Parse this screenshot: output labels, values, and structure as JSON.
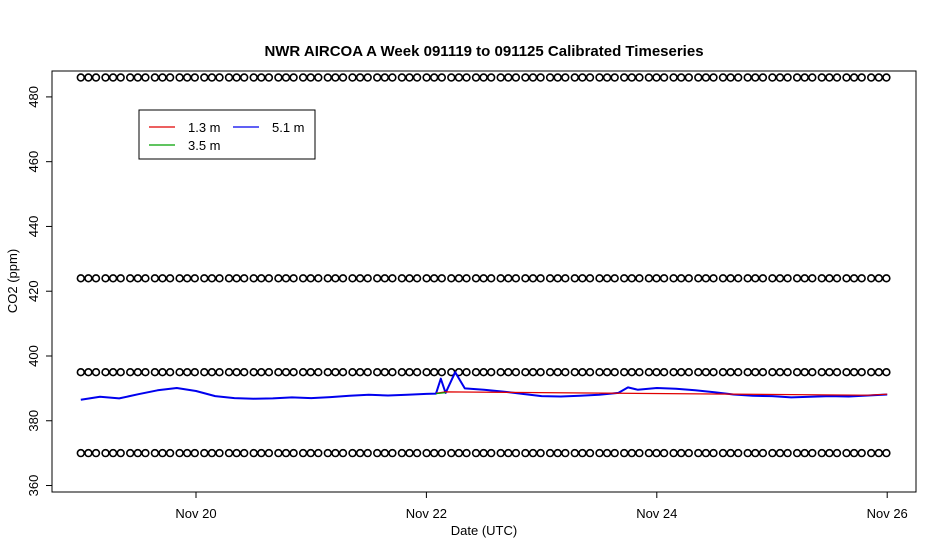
{
  "chart_data": {
    "type": "line",
    "title": "NWR AIRCOA A  Week 091119 to 091125  Calibrated Timeseries",
    "xlabel": "Date (UTC)",
    "ylabel": "CO2 (ppm)",
    "x_range": [
      "2009-11-18T18:00",
      "2009-11-26T06:00"
    ],
    "x_ticks": [
      {
        "x": "2009-11-20T00:00",
        "label": "Nov 20"
      },
      {
        "x": "2009-11-22T00:00",
        "label": "Nov 22"
      },
      {
        "x": "2009-11-24T00:00",
        "label": "Nov 24"
      },
      {
        "x": "2009-11-26T00:00",
        "label": "Nov 26"
      }
    ],
    "ylim": [
      358,
      488
    ],
    "y_ticks": [
      360,
      380,
      400,
      420,
      440,
      460,
      480
    ],
    "legend": {
      "position": "top-left",
      "entries": [
        {
          "name": "1.3 m",
          "color": "#e00000"
        },
        {
          "name": "3.5 m",
          "color": "#00a000"
        },
        {
          "name": "5.1 m",
          "color": "#0000ee"
        }
      ]
    },
    "series": [
      {
        "name": "5.1 m",
        "color": "#0000ee",
        "points": [
          [
            "2009-11-19T00:00",
            386.5
          ],
          [
            "2009-11-19T04:00",
            387.4
          ],
          [
            "2009-11-19T08:00",
            386.9
          ],
          [
            "2009-11-19T12:00",
            388.2
          ],
          [
            "2009-11-19T16:00",
            389.4
          ],
          [
            "2009-11-19T20:00",
            390.1
          ],
          [
            "2009-11-20T00:00",
            389.2
          ],
          [
            "2009-11-20T04:00",
            387.6
          ],
          [
            "2009-11-20T08:00",
            387.0
          ],
          [
            "2009-11-20T12:00",
            386.8
          ],
          [
            "2009-11-20T16:00",
            386.9
          ],
          [
            "2009-11-20T20:00",
            387.2
          ],
          [
            "2009-11-21T00:00",
            387.0
          ],
          [
            "2009-11-21T04:00",
            387.3
          ],
          [
            "2009-11-21T08:00",
            387.7
          ],
          [
            "2009-11-21T12:00",
            388.0
          ],
          [
            "2009-11-21T16:00",
            387.8
          ],
          [
            "2009-11-21T20:00",
            388.0
          ],
          [
            "2009-11-22T00:00",
            388.3
          ],
          [
            "2009-11-22T02:00",
            388.4
          ],
          [
            "2009-11-22T03:00",
            393.0
          ],
          [
            "2009-11-22T04:00",
            388.6
          ],
          [
            "2009-11-22T06:00",
            395.0
          ],
          [
            "2009-11-22T08:00",
            390.0
          ],
          [
            "2009-11-22T12:00",
            389.6
          ],
          [
            "2009-11-22T16:00",
            389.0
          ],
          [
            "2009-11-22T20:00",
            388.3
          ],
          [
            "2009-11-23T00:00",
            387.6
          ],
          [
            "2009-11-23T04:00",
            387.5
          ],
          [
            "2009-11-23T08:00",
            387.7
          ],
          [
            "2009-11-23T12:00",
            388.0
          ],
          [
            "2009-11-23T16:00",
            388.6
          ],
          [
            "2009-11-23T18:00",
            390.3
          ],
          [
            "2009-11-23T20:00",
            389.6
          ],
          [
            "2009-11-24T00:00",
            390.1
          ],
          [
            "2009-11-24T04:00",
            389.9
          ],
          [
            "2009-11-24T08:00",
            389.4
          ],
          [
            "2009-11-24T12:00",
            388.8
          ],
          [
            "2009-11-24T16:00",
            388.1
          ],
          [
            "2009-11-24T20:00",
            387.7
          ],
          [
            "2009-11-25T00:00",
            387.6
          ],
          [
            "2009-11-25T04:00",
            387.2
          ],
          [
            "2009-11-25T08:00",
            387.4
          ],
          [
            "2009-11-25T12:00",
            387.6
          ],
          [
            "2009-11-25T16:00",
            387.5
          ],
          [
            "2009-11-25T20:00",
            387.8
          ],
          [
            "2009-11-26T00:00",
            388.1
          ]
        ]
      },
      {
        "name": "1.3 m",
        "color": "#e00000",
        "points": [
          [
            "2009-11-22T02:00",
            388.5
          ],
          [
            "2009-11-22T04:00",
            388.9
          ],
          [
            "2009-11-25T20:00",
            387.9
          ],
          [
            "2009-11-26T00:00",
            388.2
          ]
        ]
      },
      {
        "name": "3.5 m",
        "color": "#00a000",
        "points": [
          [
            "2009-11-22T02:00",
            388.4
          ],
          [
            "2009-11-22T04:00",
            388.7
          ]
        ]
      }
    ],
    "flag_levels": [
      486,
      424,
      395,
      370
    ],
    "flag_range": [
      "2009-11-19T00:00",
      "2009-11-26T00:00"
    ]
  }
}
